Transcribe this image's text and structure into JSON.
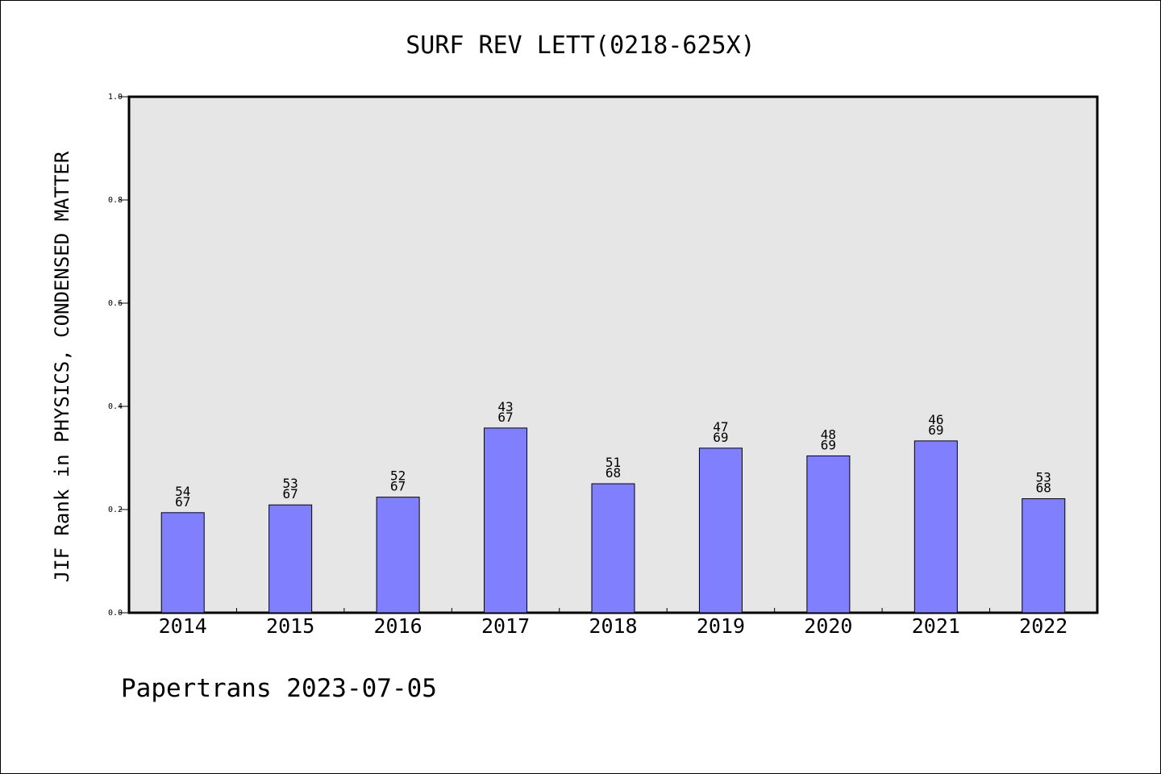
{
  "chart_data": {
    "type": "bar",
    "title": "SURF REV LETT(0218-625X)",
    "xlabel": "",
    "ylabel": "JIF Rank in PHYSICS, CONDENSED MATTER",
    "categories": [
      "2014",
      "2015",
      "2016",
      "2017",
      "2018",
      "2019",
      "2020",
      "2021",
      "2022"
    ],
    "values": [
      0.194,
      0.209,
      0.224,
      0.358,
      0.25,
      0.319,
      0.304,
      0.333,
      0.221
    ],
    "rank": [
      "54",
      "53",
      "52",
      "43",
      "51",
      "47",
      "48",
      "46",
      "53"
    ],
    "total": [
      "67",
      "67",
      "67",
      "67",
      "68",
      "69",
      "69",
      "69",
      "68"
    ],
    "ylim": [
      0,
      1.0
    ],
    "yticks": [
      "0.0",
      "0.2",
      "0.4",
      "0.6",
      "0.8",
      "1.0"
    ],
    "grid": false,
    "legend": "none",
    "colors": {
      "bar": "#8080ff",
      "plot_background": "#e6e6e6",
      "axis": "#000000"
    }
  },
  "footer": "Papertrans 2023-07-05"
}
